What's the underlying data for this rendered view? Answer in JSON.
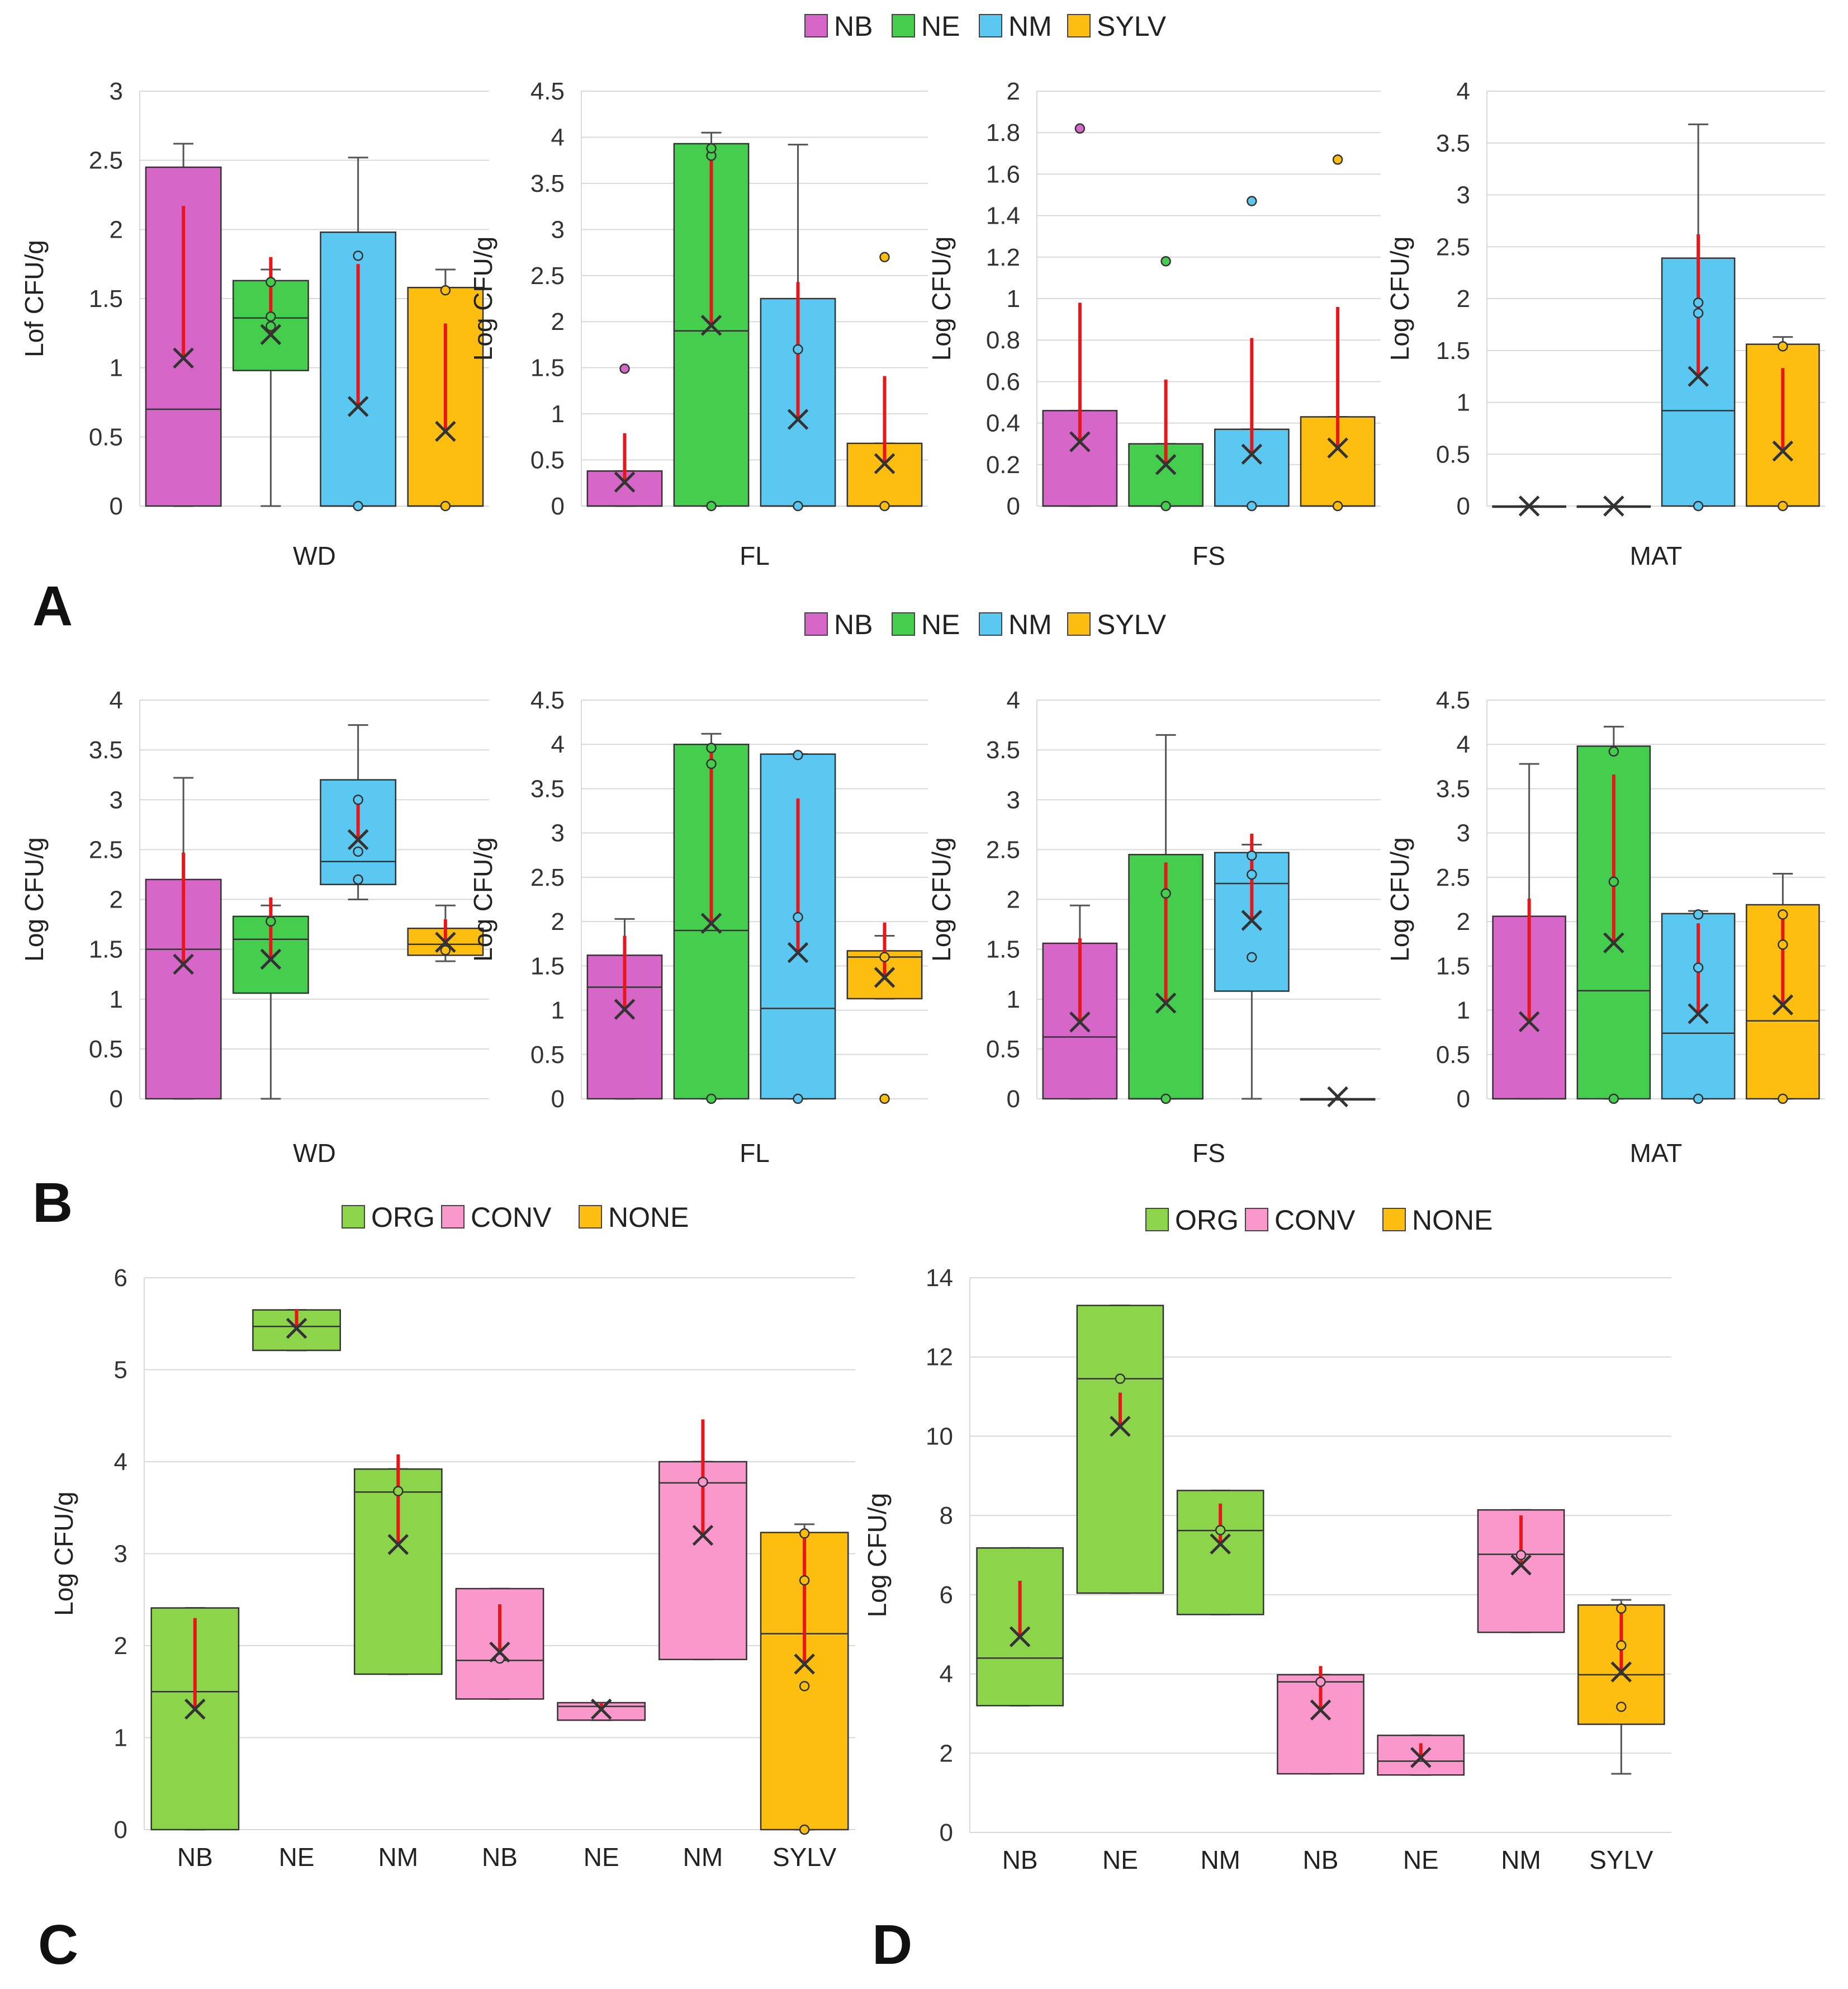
{
  "figure": {
    "panel_labels": [
      "A",
      "B",
      "C",
      "D"
    ],
    "legend_species": [
      "NB",
      "NE",
      "NM",
      "SYLV"
    ],
    "legend_management": [
      "ORG",
      "CONV",
      "NONE"
    ],
    "colors": {
      "NB": "#D667C9",
      "NE": "#45CE4E",
      "NM": "#5BC8F2",
      "SYLV": "#FEBE10",
      "ORG": "#8CD44A",
      "CONV": "#FB98CB",
      "NONE": "#FEBE10",
      "sd_line": "#E8151B",
      "whisker": "#555555",
      "grid": "#D9D9D9",
      "mean_marker": "#333333"
    }
  },
  "chart_data": [
    {
      "panel": "A",
      "type": "box",
      "xlabel": "WD",
      "ylabel": "Lof CFU/g",
      "ylim": [
        0,
        3
      ],
      "ticks": [
        0,
        0.5,
        1,
        1.5,
        2,
        2.5,
        3
      ],
      "series": [
        {
          "name": "NB",
          "color_key": "NB",
          "box": [
            0,
            0.7,
            2.45
          ],
          "whisker": [
            0,
            2.62
          ],
          "mean": 1.07,
          "sd_top": 2.17,
          "points": []
        },
        {
          "name": "NE",
          "color_key": "NE",
          "box": [
            0.98,
            1.36,
            1.63
          ],
          "whisker": [
            0,
            1.71
          ],
          "mean": 1.24,
          "sd_top": 1.8,
          "points": [
            1.62,
            1.37,
            1.3
          ]
        },
        {
          "name": "NM",
          "color_key": "NM",
          "box": [
            0,
            0,
            1.98
          ],
          "whisker": [
            0,
            2.52
          ],
          "mean": 0.72,
          "sd_top": 1.75,
          "points": [
            1.81,
            0
          ]
        },
        {
          "name": "SYLV",
          "color_key": "SYLV",
          "box": [
            0,
            0,
            1.58
          ],
          "whisker": [
            0,
            1.71
          ],
          "mean": 0.54,
          "sd_top": 1.32,
          "points": [
            1.56,
            0
          ]
        }
      ]
    },
    {
      "panel": "A",
      "type": "box",
      "xlabel": "FL",
      "ylabel": "Log CFU/g",
      "ylim": [
        0,
        4.5
      ],
      "ticks": [
        0,
        0.5,
        1,
        1.5,
        2,
        2.5,
        3,
        3.5,
        4,
        4.5
      ],
      "series": [
        {
          "name": "NB",
          "color_key": "NB",
          "box": [
            0,
            0,
            0.38
          ],
          "whisker": [
            0,
            0.38
          ],
          "mean": 0.26,
          "sd_top": 0.79,
          "points": [
            1.49
          ]
        },
        {
          "name": "NE",
          "color_key": "NE",
          "box": [
            0,
            1.9,
            3.93
          ],
          "whisker": [
            0,
            4.05
          ],
          "mean": 1.96,
          "sd_top": 3.85,
          "points": [
            3.8,
            3.88,
            0
          ]
        },
        {
          "name": "NM",
          "color_key": "NM",
          "box": [
            0,
            0,
            2.25
          ],
          "whisker": [
            0,
            3.92
          ],
          "mean": 0.94,
          "sd_top": 2.43,
          "points": [
            1.7,
            0
          ]
        },
        {
          "name": "SYLV",
          "color_key": "SYLV",
          "box": [
            0,
            0,
            0.68
          ],
          "whisker": [
            0,
            0.68
          ],
          "mean": 0.46,
          "sd_top": 1.41,
          "points": [
            2.7,
            0
          ]
        }
      ]
    },
    {
      "panel": "A",
      "type": "box",
      "xlabel": "FS",
      "ylabel": "Log CFU/g",
      "ylim": [
        0,
        2
      ],
      "ticks": [
        0,
        0.2,
        0.4,
        0.6,
        0.8,
        1,
        1.2,
        1.4,
        1.6,
        1.8,
        2
      ],
      "series": [
        {
          "name": "NB",
          "color_key": "NB",
          "box": [
            0,
            0,
            0.46
          ],
          "whisker": [
            0,
            0.46
          ],
          "mean": 0.31,
          "sd_top": 0.98,
          "points": [
            1.82
          ]
        },
        {
          "name": "NE",
          "color_key": "NE",
          "box": [
            0,
            0,
            0.3
          ],
          "whisker": [
            0,
            0.3
          ],
          "mean": 0.2,
          "sd_top": 0.61,
          "points": [
            1.18,
            0
          ]
        },
        {
          "name": "NM",
          "color_key": "NM",
          "box": [
            0,
            0,
            0.37
          ],
          "whisker": [
            0,
            0.37
          ],
          "mean": 0.25,
          "sd_top": 0.81,
          "points": [
            1.47,
            0
          ]
        },
        {
          "name": "SYLV",
          "color_key": "SYLV",
          "box": [
            0,
            0,
            0.43
          ],
          "whisker": [
            0,
            0.43
          ],
          "mean": 0.28,
          "sd_top": 0.96,
          "points": [
            1.67,
            0
          ]
        }
      ]
    },
    {
      "panel": "A",
      "type": "box",
      "xlabel": "MAT",
      "ylabel": "Log CFU/g",
      "ylim": [
        0,
        4
      ],
      "ticks": [
        0,
        0.5,
        1,
        1.5,
        2,
        2.5,
        3,
        3.5,
        4
      ],
      "series": [
        {
          "name": "NB",
          "color_key": "NB",
          "box": [
            0,
            0,
            0
          ],
          "whisker": [
            0,
            0
          ],
          "mean": 0,
          "sd_top": 0,
          "points": []
        },
        {
          "name": "NE",
          "color_key": "NE",
          "box": [
            0,
            0,
            0
          ],
          "whisker": [
            0,
            0
          ],
          "mean": 0,
          "sd_top": 0,
          "points": []
        },
        {
          "name": "NM",
          "color_key": "NM",
          "box": [
            0,
            0.92,
            2.39
          ],
          "whisker": [
            0,
            3.68
          ],
          "mean": 1.25,
          "sd_top": 2.62,
          "points": [
            1.96,
            1.86,
            0
          ]
        },
        {
          "name": "SYLV",
          "color_key": "SYLV",
          "box": [
            0,
            0,
            1.56
          ],
          "whisker": [
            0,
            1.63
          ],
          "mean": 0.53,
          "sd_top": 1.33,
          "points": [
            1.54,
            0
          ]
        }
      ]
    },
    {
      "panel": "B",
      "type": "box",
      "xlabel": "WD",
      "ylabel": "Log CFU/g",
      "ylim": [
        0,
        4
      ],
      "ticks": [
        0,
        0.5,
        1,
        1.5,
        2,
        2.5,
        3,
        3.5,
        4
      ],
      "series": [
        {
          "name": "NB",
          "color_key": "NB",
          "box": [
            0,
            1.5,
            2.2
          ],
          "whisker": [
            0,
            3.22
          ],
          "mean": 1.35,
          "sd_top": 2.47,
          "points": []
        },
        {
          "name": "NE",
          "color_key": "NE",
          "box": [
            1.06,
            1.6,
            1.83
          ],
          "whisker": [
            0,
            1.94
          ],
          "mean": 1.4,
          "sd_top": 2.02,
          "points": [
            1.78
          ]
        },
        {
          "name": "NM",
          "color_key": "NM",
          "box": [
            2.15,
            2.38,
            3.2
          ],
          "whisker": [
            2.0,
            3.75
          ],
          "mean": 2.6,
          "sd_top": 3.0,
          "points": [
            3.0,
            2.48,
            2.2
          ]
        },
        {
          "name": "SYLV",
          "color_key": "SYLV",
          "box": [
            1.44,
            1.55,
            1.71
          ],
          "whisker": [
            1.38,
            1.94
          ],
          "mean": 1.57,
          "sd_top": 1.8,
          "points": [
            1.49
          ]
        }
      ]
    },
    {
      "panel": "B",
      "type": "box",
      "xlabel": "FL",
      "ylabel": "Log CFU/g",
      "ylim": [
        0,
        4.5
      ],
      "ticks": [
        0,
        0.5,
        1,
        1.5,
        2,
        2.5,
        3,
        3.5,
        4,
        4.5
      ],
      "series": [
        {
          "name": "NB",
          "color_key": "NB",
          "box": [
            0,
            1.26,
            1.62
          ],
          "whisker": [
            0,
            2.03
          ],
          "mean": 1.01,
          "sd_top": 1.84,
          "points": []
        },
        {
          "name": "NE",
          "color_key": "NE",
          "box": [
            0,
            1.9,
            4.0
          ],
          "whisker": [
            0,
            4.12
          ],
          "mean": 1.98,
          "sd_top": 3.97,
          "points": [
            3.96,
            3.78,
            0
          ]
        },
        {
          "name": "NM",
          "color_key": "NM",
          "box": [
            0,
            1.02,
            3.89
          ],
          "whisker": [
            0,
            3.89
          ],
          "mean": 1.65,
          "sd_top": 3.39,
          "points": [
            3.88,
            2.05,
            0
          ]
        },
        {
          "name": "SYLV",
          "color_key": "SYLV",
          "box": [
            1.13,
            1.6,
            1.67
          ],
          "whisker": [
            1.13,
            1.84
          ],
          "mean": 1.37,
          "sd_top": 1.99,
          "points": [
            1.6,
            0
          ]
        }
      ]
    },
    {
      "panel": "B",
      "type": "box",
      "xlabel": "FS",
      "ylabel": "Log CFU/g",
      "ylim": [
        0,
        4
      ],
      "ticks": [
        0,
        0.5,
        1,
        1.5,
        2,
        2.5,
        3,
        3.5,
        4
      ],
      "series": [
        {
          "name": "NB",
          "color_key": "NB",
          "box": [
            0,
            0.62,
            1.56
          ],
          "whisker": [
            0,
            1.94
          ],
          "mean": 0.77,
          "sd_top": 1.61,
          "points": []
        },
        {
          "name": "NE",
          "color_key": "NE",
          "box": [
            0,
            0,
            2.45
          ],
          "whisker": [
            0,
            3.65
          ],
          "mean": 0.96,
          "sd_top": 2.37,
          "points": [
            2.06,
            0
          ]
        },
        {
          "name": "NM",
          "color_key": "NM",
          "box": [
            1.08,
            2.16,
            2.47
          ],
          "whisker": [
            0,
            2.55
          ],
          "mean": 1.79,
          "sd_top": 2.66,
          "points": [
            2.44,
            2.25,
            1.42
          ]
        },
        {
          "name": "SYLV",
          "color_key": "SYLV",
          "box": [
            0,
            0,
            0
          ],
          "whisker": [
            0,
            0
          ],
          "mean": 0.02,
          "sd_top": 0.02,
          "points": []
        }
      ]
    },
    {
      "panel": "B",
      "type": "box",
      "xlabel": "MAT",
      "ylabel": "Log CFU/g",
      "ylim": [
        0,
        4.5
      ],
      "ticks": [
        0,
        0.5,
        1,
        1.5,
        2,
        2.5,
        3,
        3.5,
        4,
        4.5
      ],
      "series": [
        {
          "name": "NB",
          "color_key": "NB",
          "box": [
            0,
            0,
            2.06
          ],
          "whisker": [
            0,
            3.78
          ],
          "mean": 0.87,
          "sd_top": 2.26,
          "points": []
        },
        {
          "name": "NE",
          "color_key": "NE",
          "box": [
            0,
            1.22,
            3.98
          ],
          "whisker": [
            0,
            4.2
          ],
          "mean": 1.76,
          "sd_top": 3.66,
          "points": [
            3.92,
            2.45,
            0
          ]
        },
        {
          "name": "NM",
          "color_key": "NM",
          "box": [
            0,
            0.74,
            2.09
          ],
          "whisker": [
            0,
            2.12
          ],
          "mean": 0.96,
          "sd_top": 1.98,
          "points": [
            2.08,
            1.48,
            0
          ]
        },
        {
          "name": "SYLV",
          "color_key": "SYLV",
          "box": [
            0,
            0.88,
            2.19
          ],
          "whisker": [
            0,
            2.54
          ],
          "mean": 1.06,
          "sd_top": 2.1,
          "points": [
            2.08,
            1.74,
            0
          ]
        }
      ]
    },
    {
      "panel": "C",
      "type": "box",
      "ylabel": "Log CFU/g",
      "ylim": [
        0,
        6
      ],
      "ticks": [
        0,
        1,
        2,
        3,
        4,
        5,
        6
      ],
      "categories": [
        "NB",
        "NE",
        "NM",
        "NB",
        "NE",
        "NM",
        "SYLV"
      ],
      "series": [
        {
          "name": "NB",
          "color_key": "ORG",
          "box": [
            0,
            1.5,
            2.41
          ],
          "whisker": [
            0,
            2.41
          ],
          "mean": 1.31,
          "sd_top": 2.3,
          "points": []
        },
        {
          "name": "NE",
          "color_key": "ORG",
          "box": [
            5.21,
            5.47,
            5.65
          ],
          "whisker": [
            5.21,
            5.65
          ],
          "mean": 5.45,
          "sd_top": 5.66,
          "points": []
        },
        {
          "name": "NM",
          "color_key": "ORG",
          "box": [
            1.69,
            3.67,
            3.92
          ],
          "whisker": [
            1.69,
            3.92
          ],
          "mean": 3.1,
          "sd_top": 4.08,
          "points": [
            3.68
          ]
        },
        {
          "name": "NB",
          "color_key": "CONV",
          "box": [
            1.42,
            1.84,
            2.62
          ],
          "whisker": [
            1.42,
            2.62
          ],
          "mean": 1.93,
          "sd_top": 2.45,
          "points": [
            1.86
          ]
        },
        {
          "name": "NE",
          "color_key": "CONV",
          "box": [
            1.19,
            1.34,
            1.38
          ],
          "whisker": [
            1.19,
            1.38
          ],
          "mean": 1.31,
          "sd_top": 1.38,
          "points": []
        },
        {
          "name": "NM",
          "color_key": "CONV",
          "box": [
            1.85,
            3.77,
            4.0
          ],
          "whisker": [
            1.85,
            4.0
          ],
          "mean": 3.2,
          "sd_top": 4.46,
          "points": [
            3.78
          ]
        },
        {
          "name": "SYLV",
          "color_key": "NONE",
          "box": [
            0,
            2.13,
            3.23
          ],
          "whisker": [
            0,
            3.32
          ],
          "mean": 1.8,
          "sd_top": 3.25,
          "points": [
            3.22,
            2.71,
            1.56,
            0
          ]
        }
      ]
    },
    {
      "panel": "D",
      "type": "box",
      "ylabel": "Log CFU/g",
      "ylim": [
        0,
        14
      ],
      "ticks": [
        0,
        2,
        4,
        6,
        8,
        10,
        12,
        14
      ],
      "categories": [
        "NB",
        "NE",
        "NM",
        "NB",
        "NE",
        "NM",
        "SYLV"
      ],
      "series": [
        {
          "name": "NB",
          "color_key": "ORG",
          "box": [
            3.2,
            4.4,
            7.18
          ],
          "whisker": [
            3.2,
            7.18
          ],
          "mean": 4.94,
          "sd_top": 6.35,
          "points": []
        },
        {
          "name": "NE",
          "color_key": "ORG",
          "box": [
            6.04,
            11.45,
            13.3
          ],
          "whisker": [
            6.04,
            13.3
          ],
          "mean": 10.25,
          "sd_top": 11.1,
          "points": [
            11.45
          ]
        },
        {
          "name": "NM",
          "color_key": "ORG",
          "box": [
            5.5,
            7.62,
            8.63
          ],
          "whisker": [
            5.5,
            8.63
          ],
          "mean": 7.28,
          "sd_top": 8.3,
          "points": [
            7.63
          ]
        },
        {
          "name": "NB",
          "color_key": "CONV",
          "box": [
            1.48,
            3.8,
            3.98
          ],
          "whisker": [
            1.48,
            3.98
          ],
          "mean": 3.09,
          "sd_top": 4.2,
          "points": [
            3.8
          ]
        },
        {
          "name": "NE",
          "color_key": "CONV",
          "box": [
            1.45,
            1.8,
            2.45
          ],
          "whisker": [
            1.45,
            2.45
          ],
          "mean": 1.89,
          "sd_top": 2.25,
          "points": []
        },
        {
          "name": "NM",
          "color_key": "CONV",
          "box": [
            5.05,
            7.02,
            8.14
          ],
          "whisker": [
            5.05,
            8.14
          ],
          "mean": 6.75,
          "sd_top": 8.0,
          "points": [
            7.0
          ]
        },
        {
          "name": "SYLV",
          "color_key": "NONE",
          "box": [
            2.73,
            3.98,
            5.74
          ],
          "whisker": [
            1.48,
            5.87
          ],
          "mean": 4.05,
          "sd_top": 5.7,
          "points": [
            5.65,
            4.72,
            3.17
          ]
        }
      ]
    }
  ]
}
